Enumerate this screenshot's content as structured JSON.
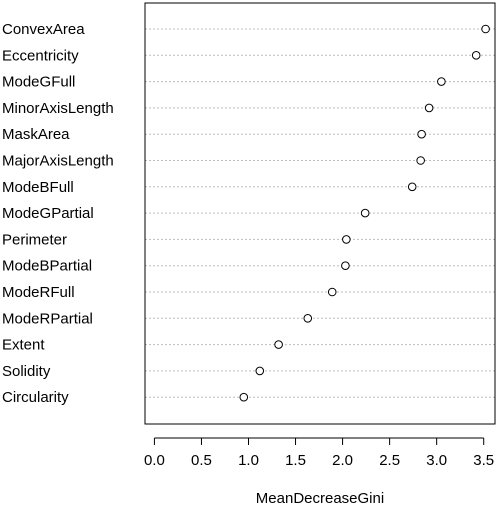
{
  "chart_data": {
    "type": "scatter",
    "title": "",
    "xlabel": "MeanDecreaseGini",
    "ylabel": "",
    "xlim": [
      -0.1,
      3.62
    ],
    "x_ticks": [
      "0.0",
      "0.5",
      "1.0",
      "1.5",
      "2.0",
      "2.5",
      "3.0",
      "3.5"
    ],
    "x_tick_values": [
      0,
      0.5,
      1,
      1.5,
      2,
      2.5,
      3,
      3.5
    ],
    "grid": "dotted horizontal guide lines",
    "categories": [
      "ConvexArea",
      "Eccentricity",
      "ModeGFull",
      "MinorAxisLength",
      "MaskArea",
      "MajorAxisLength",
      "ModeBFull",
      "ModeGPartial",
      "Perimeter",
      "ModeBPartial",
      "ModeRFull",
      "ModeRPartial",
      "Extent",
      "Solidity",
      "Circularity"
    ],
    "values": [
      3.52,
      3.42,
      3.05,
      2.92,
      2.84,
      2.83,
      2.74,
      2.24,
      2.04,
      2.03,
      1.89,
      1.63,
      1.32,
      1.12,
      0.95
    ]
  }
}
